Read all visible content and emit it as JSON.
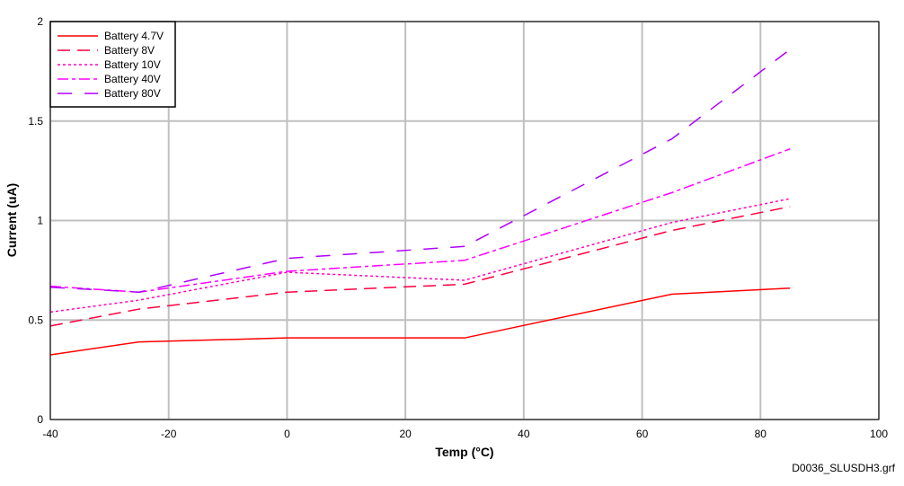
{
  "chart_data": {
    "type": "line",
    "xlabel": "Temp (°C)",
    "ylabel": "Current (uA)",
    "xlim": [
      -40,
      100
    ],
    "ylim": [
      0,
      2
    ],
    "xticks": [
      "-40",
      "-20",
      "0",
      "20",
      "40",
      "60",
      "80",
      "100"
    ],
    "yticks": [
      "0",
      "0.5",
      "1",
      "1.5",
      "2"
    ],
    "grid": true,
    "legend_position": "top-left",
    "footnote": "D0036_SLUSDH3.grf",
    "x": [
      -40,
      -25,
      0,
      30,
      65,
      85
    ],
    "series": [
      {
        "name": "Battery 4.7V",
        "color": "#ff0000",
        "dash": "",
        "values": [
          0.325,
          0.39,
          0.41,
          0.41,
          0.63,
          0.66
        ]
      },
      {
        "name": "Battery 8V",
        "color": "#ff0040",
        "dash": "14 8",
        "values": [
          0.47,
          0.555,
          0.64,
          0.68,
          0.95,
          1.07
        ]
      },
      {
        "name": "Battery 10V",
        "color": "#ff00c0",
        "dash": "3 3",
        "values": [
          0.54,
          0.6,
          0.74,
          0.7,
          0.99,
          1.11
        ]
      },
      {
        "name": "Battery 40V",
        "color": "#ff00ff",
        "dash": "12 4 4 4",
        "values": [
          0.67,
          0.64,
          0.745,
          0.8,
          1.14,
          1.36
        ]
      },
      {
        "name": "Battery 80V",
        "color": "#b000ff",
        "dash": "16 14",
        "values": [
          0.665,
          0.64,
          0.81,
          0.87,
          1.41,
          1.86
        ]
      }
    ]
  }
}
